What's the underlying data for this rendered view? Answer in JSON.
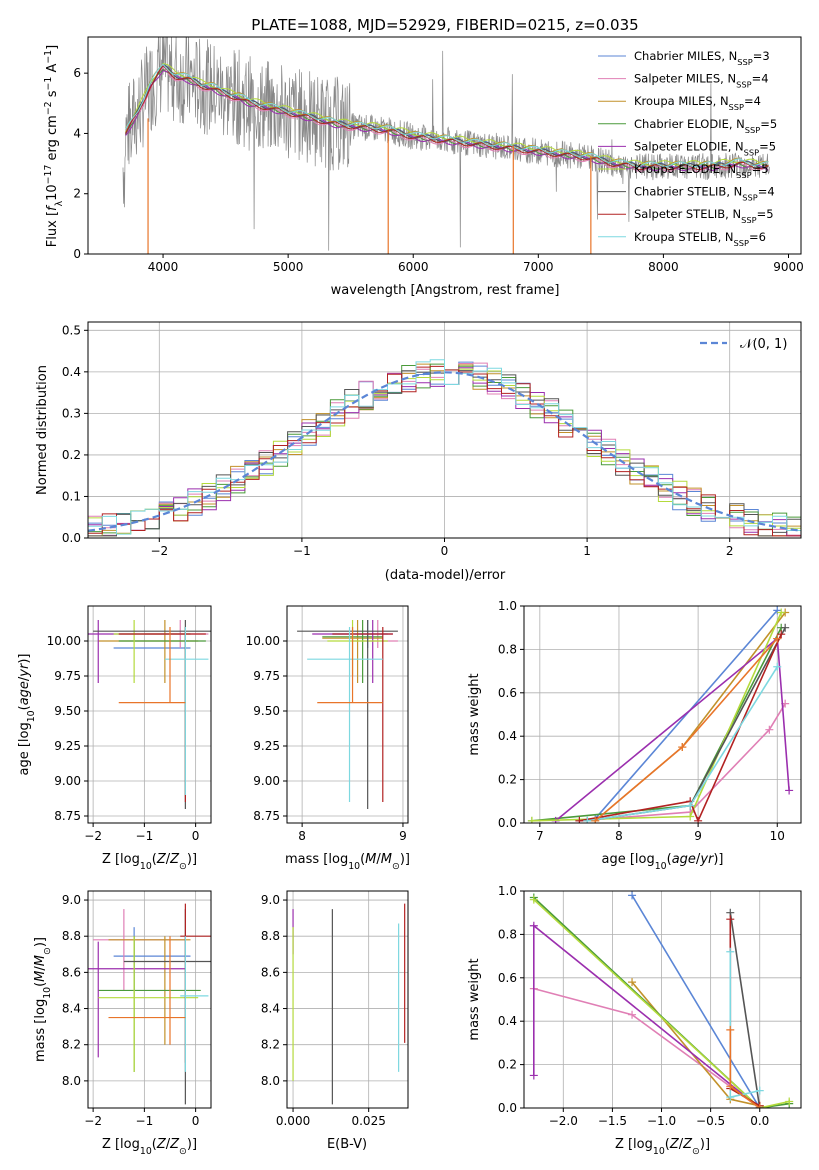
{
  "figure": {
    "title": "PLATE=1088, MJD=52929, FIBERID=0215, z=0.035"
  },
  "models": [
    {
      "name": "Chabrier MILES",
      "n": "3",
      "color": "#5b86d6"
    },
    {
      "name": "Salpeter MILES",
      "n": "4",
      "color": "#e07fb5"
    },
    {
      "name": "Kroupa MILES",
      "n": "4",
      "color": "#c2912a"
    },
    {
      "name": "Chabrier ELODIE",
      "n": "5",
      "color": "#4a9a3a"
    },
    {
      "name": "Salpeter ELODIE",
      "n": "5",
      "color": "#9b2fae"
    },
    {
      "name": "Kroupa ELODIE",
      "n": "5",
      "color": "#b4da3c"
    },
    {
      "name": "Chabrier STELIB",
      "n": "4",
      "color": "#555555"
    },
    {
      "name": "Salpeter STELIB",
      "n": "5",
      "color": "#b22222"
    },
    {
      "name": "Kroupa STELIB",
      "n": "6",
      "color": "#7dd8e0"
    }
  ],
  "colors": {
    "data": "#888888",
    "orange": "#e8752a"
  },
  "chart_data": [
    {
      "type": "line",
      "id": "spectrum",
      "xlabel": "wavelength [Angstrom, rest frame]",
      "ylabel_parts": [
        "Flux [",
        "f",
        "λ",
        "10",
        "−17",
        " erg cm",
        "−2",
        " s",
        "−1",
        " A",
        "−1",
        "]"
      ],
      "xlim": [
        3400,
        9100
      ],
      "ylim": [
        0,
        7.2
      ],
      "xticks": [
        4000,
        5000,
        6000,
        7000,
        8000,
        9000
      ],
      "yticks": [
        0,
        2,
        4,
        6
      ],
      "model_curve": {
        "x": [
          3700,
          3800,
          3900,
          4000,
          4100,
          4200,
          4300,
          4400,
          4500,
          4600,
          4700,
          4800,
          4900,
          5000,
          5200,
          5400,
          5600,
          5800,
          6000,
          6200,
          6400,
          6600,
          6800,
          7000,
          7200,
          7400,
          7600,
          7800,
          8000,
          8200,
          8400,
          8600,
          8800
        ],
        "y": [
          4.0,
          4.7,
          5.6,
          6.2,
          5.9,
          5.8,
          5.6,
          5.5,
          5.3,
          5.2,
          5.0,
          4.9,
          4.8,
          4.7,
          4.5,
          4.3,
          4.2,
          4.1,
          3.9,
          3.8,
          3.7,
          3.6,
          3.5,
          3.4,
          3.3,
          3.2,
          3.0,
          2.9,
          2.9,
          2.9,
          2.9,
          3.0,
          2.9
        ]
      },
      "grid": false,
      "legend_position": "top-right"
    },
    {
      "type": "bar",
      "id": "residuals",
      "xlabel": "(data-model)/error",
      "ylabel": "Normed distribution",
      "xlim": [
        -2.5,
        2.5
      ],
      "ylim": [
        0,
        0.52
      ],
      "xticks": [
        -2,
        -1,
        0,
        1,
        2
      ],
      "yticks": [
        0.0,
        0.1,
        0.2,
        0.3,
        0.4,
        0.5
      ],
      "legend": "𝒩(0, 1)",
      "grid": true,
      "legend_position": "top-right"
    },
    {
      "type": "scatter",
      "id": "age_vs_Z",
      "xlabel": "Z [log10(Z/Z⊙)]",
      "ylabel": "age [log10(age/yr)]",
      "xlim": [
        -2.1,
        0.3
      ],
      "ylim": [
        8.7,
        10.25
      ],
      "xticks": [
        -2,
        -1,
        0
      ],
      "yticks": [
        8.75,
        9.0,
        9.25,
        9.5,
        9.75,
        10.0
      ],
      "points": [
        {
          "x": -1.2,
          "xlo": -1.6,
          "xhi": -0.1,
          "y": 9.95,
          "ylo": 9.95,
          "yhi": 9.95
        },
        {
          "x": -0.3,
          "xlo": -1.0,
          "xhi": 0.25,
          "y": 10.05,
          "ylo": 9.95,
          "yhi": 10.15
        },
        {
          "x": -0.6,
          "xlo": -1.9,
          "xhi": 0.05,
          "y": 10.0,
          "ylo": 9.7,
          "yhi": 10.15
        },
        {
          "x": -0.2,
          "xlo": -1.5,
          "xhi": 0.2,
          "y": 10.0,
          "ylo": 8.9,
          "yhi": 10.1
        },
        {
          "x": -1.9,
          "xlo": -2.1,
          "xhi": -0.1,
          "y": 10.05,
          "ylo": 9.7,
          "yhi": 10.15
        },
        {
          "x": -1.2,
          "xlo": -1.6,
          "xhi": -0.1,
          "y": 10.05,
          "ylo": 9.7,
          "yhi": 10.15
        },
        {
          "x": -0.2,
          "xlo": -2.0,
          "xhi": 0.3,
          "y": 10.07,
          "ylo": 8.8,
          "yhi": 10.15
        },
        {
          "x": -0.2,
          "xlo": -1.5,
          "xhi": 0.2,
          "y": 10.05,
          "ylo": 8.85,
          "yhi": 10.1
        },
        {
          "x": -0.2,
          "xlo": -0.6,
          "xhi": 0.25,
          "y": 9.87,
          "ylo": 8.9,
          "yhi": 10.1
        },
        {
          "x": -0.5,
          "xlo": -1.5,
          "xhi": -0.2,
          "y": 9.56,
          "ylo": 9.56,
          "yhi": 10.1
        }
      ],
      "grid": true
    },
    {
      "type": "scatter",
      "id": "age_vs_mass",
      "xlabel": "mass [log10(M/M⊙)]",
      "xlim": [
        7.85,
        9.05
      ],
      "ylim": [
        8.7,
        10.25
      ],
      "xticks": [
        8,
        9
      ],
      "yticks": [
        8.75,
        9.0,
        9.25,
        9.5,
        9.75,
        10.0
      ],
      "points": [
        {
          "x": 8.65,
          "xlo": 8.3,
          "xhi": 8.85,
          "y": 10.05,
          "ylo": 9.95,
          "yhi": 10.15
        },
        {
          "x": 8.75,
          "xlo": 8.5,
          "xhi": 8.95,
          "y": 10.0,
          "ylo": 9.95,
          "yhi": 10.15
        },
        {
          "x": 8.55,
          "xlo": 8.2,
          "xhi": 8.8,
          "y": 10.02,
          "ylo": 9.7,
          "yhi": 10.15
        },
        {
          "x": 8.6,
          "xlo": 8.2,
          "xhi": 8.8,
          "y": 10.03,
          "ylo": 9.7,
          "yhi": 10.15
        },
        {
          "x": 8.7,
          "xlo": 8.1,
          "xhi": 8.9,
          "y": 10.05,
          "ylo": 9.7,
          "yhi": 10.15
        },
        {
          "x": 8.5,
          "xlo": 8.25,
          "xhi": 8.85,
          "y": 10.0,
          "ylo": 9.75,
          "yhi": 10.15
        },
        {
          "x": 8.65,
          "xlo": 7.95,
          "xhi": 8.95,
          "y": 10.07,
          "ylo": 8.8,
          "yhi": 10.15
        },
        {
          "x": 8.8,
          "xlo": 8.3,
          "xhi": 8.9,
          "y": 10.05,
          "ylo": 8.85,
          "yhi": 10.1
        },
        {
          "x": 8.47,
          "xlo": 8.05,
          "xhi": 8.8,
          "y": 9.87,
          "ylo": 8.85,
          "yhi": 10.1
        },
        {
          "x": 8.5,
          "xlo": 8.15,
          "xhi": 8.8,
          "y": 9.56,
          "ylo": 9.56,
          "yhi": 10.1
        }
      ],
      "grid": true
    },
    {
      "type": "line",
      "id": "massweight_vs_age",
      "xlabel": "age [log10(age/yr)]",
      "ylabel": "mass weight",
      "xlim": [
        6.8,
        10.3
      ],
      "ylim": [
        0,
        1.0
      ],
      "xticks": [
        7,
        8,
        9,
        10
      ],
      "yticks": [
        0.0,
        0.2,
        0.4,
        0.6,
        0.8,
        1.0
      ],
      "series": [
        {
          "x": [
            7.7,
            10.0
          ],
          "y": [
            0.02,
            0.98
          ]
        },
        {
          "x": [
            7.5,
            8.9,
            9.9,
            10.1
          ],
          "y": [
            0.01,
            0.05,
            0.43,
            0.55
          ]
        },
        {
          "x": [
            7.7,
            8.8,
            10.1
          ],
          "y": [
            0.01,
            0.35,
            0.97
          ]
        },
        {
          "x": [
            6.9,
            8.9,
            10.05
          ],
          "y": [
            0.01,
            0.08,
            0.9
          ]
        },
        {
          "x": [
            7.2,
            10.0,
            10.15
          ],
          "y": [
            0.01,
            0.85,
            0.15
          ]
        },
        {
          "x": [
            6.9,
            8.9,
            10.05
          ],
          "y": [
            0.01,
            0.03,
            0.97
          ]
        },
        {
          "x": [
            7.6,
            8.9,
            10.1
          ],
          "y": [
            0.01,
            0.08,
            0.9
          ]
        },
        {
          "x": [
            7.5,
            8.9,
            9.0,
            10.05
          ],
          "y": [
            0.01,
            0.1,
            0.01,
            0.87
          ]
        },
        {
          "x": [
            7.6,
            8.9,
            10.0
          ],
          "y": [
            0.01,
            0.08,
            0.72
          ]
        },
        {
          "x": [
            7.7,
            8.8,
            10.0
          ],
          "y": [
            0.01,
            0.35,
            0.85
          ]
        }
      ],
      "grid": true
    },
    {
      "type": "scatter",
      "id": "mass_vs_Z",
      "xlabel": "Z [log10(Z/Z⊙)]",
      "ylabel": "mass [log10(M/M⊙)]",
      "xlim": [
        -2.1,
        0.3
      ],
      "ylim": [
        7.85,
        9.05
      ],
      "xticks": [
        -2,
        -1,
        0
      ],
      "yticks": [
        8.0,
        8.2,
        8.4,
        8.6,
        8.8,
        9.0
      ],
      "points": [
        {
          "x": -1.2,
          "xlo": -1.6,
          "xhi": -0.1,
          "y": 8.69,
          "ylo": 8.5,
          "yhi": 8.85
        },
        {
          "x": -1.4,
          "xlo": -2.0,
          "xhi": -0.2,
          "y": 8.78,
          "ylo": 8.5,
          "yhi": 8.95
        },
        {
          "x": -0.6,
          "xlo": -1.7,
          "xhi": -0.1,
          "y": 8.78,
          "ylo": 8.2,
          "yhi": 8.8
        },
        {
          "x": -1.2,
          "xlo": -1.9,
          "xhi": 0.1,
          "y": 8.5,
          "ylo": 8.05,
          "yhi": 8.8
        },
        {
          "x": -1.9,
          "xlo": -2.1,
          "xhi": -0.2,
          "y": 8.62,
          "ylo": 8.13,
          "yhi": 8.77
        },
        {
          "x": -1.2,
          "xlo": -1.9,
          "xhi": 0.05,
          "y": 8.46,
          "ylo": 8.05,
          "yhi": 8.8
        },
        {
          "x": -0.2,
          "xlo": -1.4,
          "xhi": 0.3,
          "y": 8.66,
          "ylo": 7.87,
          "yhi": 8.95
        },
        {
          "x": -0.2,
          "xlo": -0.3,
          "xhi": 0.3,
          "y": 8.8,
          "ylo": 8.1,
          "yhi": 8.98
        },
        {
          "x": -0.2,
          "xlo": -0.3,
          "xhi": 0.25,
          "y": 8.47,
          "ylo": 8.05,
          "yhi": 8.8
        },
        {
          "x": -0.5,
          "xlo": -1.7,
          "xhi": -0.2,
          "y": 8.35,
          "ylo": 8.2,
          "yhi": 8.8
        }
      ],
      "grid": true
    },
    {
      "type": "scatter",
      "id": "mass_vs_EBV",
      "xlabel": "E(B-V)",
      "xlim": [
        -0.002,
        0.038
      ],
      "ylim": [
        7.85,
        9.05
      ],
      "xticks": [
        0.0,
        0.025
      ],
      "xticklabels": [
        "0.000",
        "0.025"
      ],
      "yticks": [
        8.0,
        8.2,
        8.4,
        8.6,
        8.8,
        9.0
      ],
      "points": [
        {
          "x": 0.0,
          "y": 8.8,
          "ylo": 8.7,
          "yhi": 8.95
        },
        {
          "x": 0.0,
          "y": 8.5,
          "ylo": 8.0,
          "yhi": 8.85
        },
        {
          "x": 0.013,
          "y": 8.4,
          "ylo": 7.87,
          "yhi": 8.95
        },
        {
          "x": 0.0349,
          "y": 8.45,
          "ylo": 8.05,
          "yhi": 8.87
        },
        {
          "x": 0.0369,
          "y": 8.6,
          "ylo": 8.21,
          "yhi": 8.98
        }
      ],
      "grid": true
    },
    {
      "type": "line",
      "id": "massweight_vs_Z",
      "xlabel": "Z [log10(Z/Z⊙)]",
      "ylabel": "mass weight",
      "xlim": [
        -2.4,
        0.42
      ],
      "ylim": [
        0,
        1.0
      ],
      "xticks": [
        -2.0,
        -1.5,
        -1.0,
        -0.5,
        0.0
      ],
      "xticklabels": [
        "−2.0",
        "−1.5",
        "−1.0",
        "−0.5",
        "0.0"
      ],
      "yticks": [
        0.0,
        0.2,
        0.4,
        0.6,
        0.8,
        1.0
      ],
      "series": [
        {
          "x": [
            -1.3,
            0.0
          ],
          "y": [
            0.98,
            0.0
          ]
        },
        {
          "x": [
            -2.3,
            -1.3,
            0.0
          ],
          "y": [
            0.55,
            0.43,
            0.0
          ]
        },
        {
          "x": [
            -1.3,
            -0.3,
            0.0
          ],
          "y": [
            0.58,
            0.04,
            0.01
          ]
        },
        {
          "x": [
            -2.3,
            0.0,
            0.3
          ],
          "y": [
            0.97,
            0.0,
            0.02
          ]
        },
        {
          "x": [
            -2.3,
            -2.3,
            0.0
          ],
          "y": [
            0.15,
            0.84,
            0.0
          ]
        },
        {
          "x": [
            -2.3,
            0.0,
            0.3
          ],
          "y": [
            0.96,
            0.0,
            0.03
          ]
        },
        {
          "x": [
            -0.3,
            0.0
          ],
          "y": [
            0.9,
            0.0
          ]
        },
        {
          "x": [
            -0.3,
            -0.3,
            0.0
          ],
          "y": [
            0.87,
            0.09,
            0.01
          ]
        },
        {
          "x": [
            -0.3,
            -0.3,
            0.0
          ],
          "y": [
            0.72,
            0.05,
            0.08
          ]
        },
        {
          "x": [
            -0.3,
            -0.3,
            0.0
          ],
          "y": [
            0.36,
            0.1,
            0.0
          ]
        }
      ],
      "grid": true
    }
  ]
}
